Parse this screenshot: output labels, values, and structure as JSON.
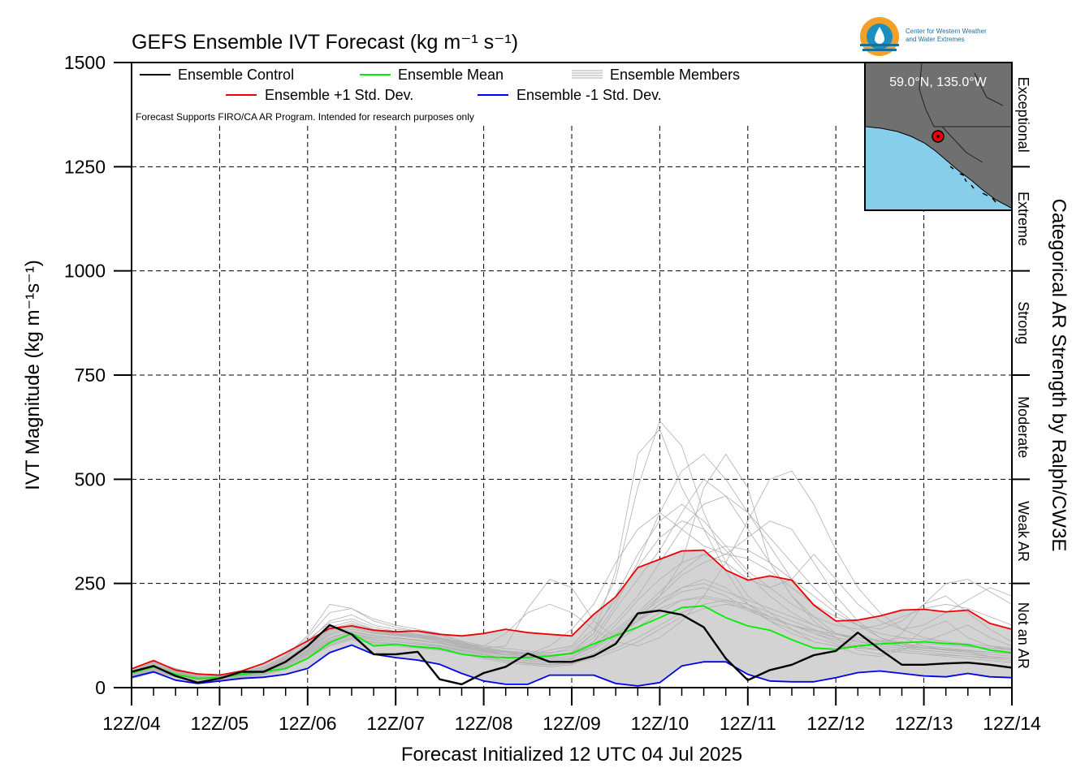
{
  "chart_data": {
    "type": "line",
    "title": "GEFS Ensemble IVT Forecast (kg m⁻¹ s⁻¹)",
    "xlabel": "Forecast Initialized 12 UTC 04 Jul 2025",
    "ylabel": "IVT Magnitude (kg m⁻¹s⁻¹)",
    "right_axis_label": "Categorical AR Strength by Ralph/CW3E",
    "note": "Forecast Supports FIRO/CA AR Program. Intended for research purposes only",
    "ylim": [
      0,
      1500
    ],
    "yticks": [
      0,
      250,
      500,
      750,
      1000,
      1250,
      1500
    ],
    "xlim": [
      0,
      240
    ],
    "x_unit": "forecast hour",
    "x_tick_hours": [
      0,
      24,
      48,
      72,
      96,
      120,
      144,
      168,
      192,
      216,
      240
    ],
    "x_tick_labels": [
      "12Z/04",
      "12Z/05",
      "12Z/06",
      "12Z/07",
      "12Z/08",
      "12Z/09",
      "12Z/10",
      "12Z/11",
      "12Z/12",
      "12Z/13",
      "12Z/14"
    ],
    "grid": true,
    "legend": [
      {
        "name": "Ensemble Control",
        "color": "#000000"
      },
      {
        "name": "Ensemble Mean",
        "color": "#00ee00"
      },
      {
        "name": "Ensemble Members",
        "color": "#aaaaaa"
      },
      {
        "name": "Ensemble +1 Std. Dev.",
        "color": "#ee0000"
      },
      {
        "name": "Ensemble -1 Std. Dev.",
        "color": "#0000ee"
      }
    ],
    "legend_placement": "top-left",
    "categories": [
      {
        "label": "Not an AR",
        "range": [
          0,
          250
        ]
      },
      {
        "label": "Weak AR",
        "range": [
          250,
          500
        ]
      },
      {
        "label": "Moderate",
        "range": [
          500,
          750
        ]
      },
      {
        "label": "Strong",
        "range": [
          750,
          1000
        ]
      },
      {
        "label": "Extreme",
        "range": [
          1000,
          1250
        ]
      },
      {
        "label": "Exceptional",
        "range": [
          1250,
          1500
        ]
      }
    ],
    "location_label": "59.0°N, 135.0°W",
    "logo_text": [
      "Center for Western Weather",
      "and Water Extremes"
    ],
    "series": [
      {
        "name": "Ensemble Control",
        "color": "#000000",
        "x": [
          0,
          6,
          12,
          18,
          24,
          30,
          36,
          42,
          48,
          54,
          60,
          66,
          72,
          78,
          84,
          90,
          96,
          102,
          108,
          114,
          120,
          126,
          132,
          138,
          144,
          150,
          156,
          162,
          168,
          174,
          180,
          186,
          192,
          198,
          204,
          210,
          216,
          222,
          228,
          234,
          240
        ],
        "y": [
          38,
          52,
          28,
          12,
          22,
          38,
          38,
          62,
          100,
          150,
          128,
          80,
          80,
          86,
          20,
          8,
          35,
          50,
          82,
          62,
          62,
          76,
          105,
          178,
          185,
          175,
          145,
          70,
          18,
          42,
          55,
          78,
          88,
          132,
          92,
          55,
          55,
          58,
          60,
          55,
          48
        ]
      },
      {
        "name": "Ensemble Mean",
        "color": "#00ee00",
        "x": [
          0,
          6,
          12,
          18,
          24,
          30,
          36,
          42,
          48,
          54,
          60,
          66,
          72,
          78,
          84,
          90,
          96,
          102,
          108,
          114,
          120,
          126,
          132,
          138,
          144,
          150,
          156,
          162,
          168,
          174,
          180,
          186,
          192,
          198,
          204,
          210,
          216,
          222,
          228,
          234,
          240
        ],
        "y": [
          35,
          50,
          32,
          22,
          24,
          32,
          38,
          46,
          70,
          108,
          130,
          100,
          104,
          98,
          94,
          80,
          74,
          72,
          72,
          76,
          82,
          105,
          125,
          145,
          168,
          192,
          196,
          168,
          148,
          138,
          115,
          95,
          92,
          100,
          105,
          108,
          110,
          106,
          103,
          90,
          84
        ]
      },
      {
        "name": "Ensemble +1 Std. Dev.",
        "color": "#ee0000",
        "x": [
          0,
          6,
          12,
          18,
          24,
          30,
          36,
          42,
          48,
          54,
          60,
          66,
          72,
          78,
          84,
          90,
          96,
          102,
          108,
          114,
          120,
          126,
          132,
          138,
          144,
          150,
          156,
          162,
          168,
          174,
          180,
          186,
          192,
          198,
          204,
          210,
          216,
          222,
          228,
          234,
          240
        ],
        "y": [
          45,
          65,
          42,
          33,
          30,
          40,
          58,
          84,
          112,
          142,
          148,
          138,
          134,
          136,
          128,
          124,
          130,
          140,
          132,
          128,
          124,
          176,
          218,
          288,
          308,
          328,
          330,
          282,
          258,
          268,
          258,
          198,
          160,
          162,
          172,
          186,
          188,
          182,
          186,
          154,
          140
        ]
      },
      {
        "name": "Ensemble -1 Std. Dev.",
        "color": "#0000ee",
        "x": [
          0,
          6,
          12,
          18,
          24,
          30,
          36,
          42,
          48,
          54,
          60,
          66,
          72,
          78,
          84,
          90,
          96,
          102,
          108,
          114,
          120,
          126,
          132,
          138,
          144,
          150,
          156,
          162,
          168,
          174,
          180,
          186,
          192,
          198,
          204,
          210,
          216,
          222,
          228,
          234,
          240
        ],
        "y": [
          25,
          38,
          18,
          10,
          16,
          22,
          25,
          32,
          46,
          84,
          102,
          80,
          72,
          66,
          56,
          34,
          16,
          8,
          8,
          30,
          30,
          30,
          10,
          4,
          12,
          52,
          62,
          62,
          32,
          16,
          14,
          14,
          24,
          36,
          40,
          34,
          28,
          26,
          34,
          26,
          24
        ]
      }
    ],
    "members": [
      [
        30,
        45,
        35,
        25,
        28,
        35,
        45,
        70,
        95,
        130,
        150,
        135,
        130,
        120,
        110,
        95,
        85,
        80,
        75,
        70,
        85,
        130,
        280,
        560,
        620,
        480,
        380,
        280,
        200,
        160,
        130,
        110,
        100,
        95,
        110,
        120,
        100,
        90,
        85,
        75,
        70
      ],
      [
        35,
        55,
        40,
        28,
        25,
        30,
        40,
        60,
        110,
        160,
        175,
        150,
        140,
        135,
        120,
        110,
        95,
        100,
        190,
        260,
        240,
        160,
        120,
        160,
        220,
        300,
        480,
        560,
        480,
        300,
        220,
        160,
        120,
        90,
        80,
        95,
        140,
        160,
        120,
        100,
        90
      ],
      [
        40,
        60,
        45,
        30,
        30,
        38,
        50,
        75,
        120,
        180,
        190,
        165,
        150,
        140,
        130,
        110,
        90,
        80,
        80,
        90,
        100,
        160,
        260,
        480,
        640,
        580,
        420,
        300,
        220,
        180,
        140,
        110,
        100,
        80,
        75,
        90,
        110,
        130,
        150,
        120,
        100
      ],
      [
        25,
        40,
        30,
        20,
        22,
        28,
        35,
        50,
        80,
        110,
        125,
        115,
        110,
        105,
        100,
        90,
        80,
        70,
        65,
        60,
        70,
        110,
        190,
        260,
        330,
        420,
        500,
        460,
        380,
        300,
        220,
        170,
        130,
        110,
        100,
        130,
        200,
        220,
        180,
        140,
        110
      ],
      [
        32,
        50,
        38,
        26,
        26,
        32,
        42,
        62,
        90,
        125,
        140,
        130,
        125,
        120,
        115,
        100,
        90,
        85,
        80,
        100,
        140,
        200,
        300,
        380,
        420,
        380,
        340,
        320,
        360,
        400,
        380,
        300,
        220,
        160,
        120,
        100,
        90,
        85,
        80,
        75,
        70
      ],
      [
        28,
        44,
        34,
        22,
        24,
        30,
        38,
        55,
        85,
        115,
        130,
        120,
        118,
        112,
        106,
        95,
        85,
        78,
        70,
        66,
        72,
        100,
        150,
        210,
        260,
        300,
        320,
        300,
        260,
        240,
        260,
        320,
        260,
        200,
        160,
        140,
        150,
        180,
        210,
        240,
        220
      ],
      [
        36,
        52,
        40,
        27,
        27,
        34,
        44,
        68,
        105,
        145,
        160,
        140,
        130,
        125,
        118,
        105,
        100,
        130,
        180,
        200,
        180,
        140,
        110,
        100,
        120,
        160,
        220,
        300,
        400,
        500,
        520,
        440,
        330,
        240,
        180,
        140,
        120,
        110,
        100,
        95,
        90
      ],
      [
        22,
        36,
        26,
        18,
        20,
        24,
        30,
        44,
        70,
        100,
        115,
        105,
        100,
        95,
        90,
        80,
        70,
        60,
        55,
        50,
        55,
        80,
        120,
        160,
        200,
        240,
        260,
        240,
        200,
        170,
        150,
        130,
        110,
        100,
        90,
        85,
        80,
        75,
        70,
        65,
        60
      ],
      [
        38,
        58,
        44,
        30,
        30,
        36,
        48,
        72,
        115,
        155,
        165,
        145,
        135,
        128,
        120,
        108,
        96,
        88,
        82,
        78,
        84,
        120,
        200,
        300,
        420,
        520,
        560,
        500,
        420,
        340,
        260,
        200,
        160,
        130,
        110,
        100,
        95,
        90,
        85,
        80,
        75
      ],
      [
        30,
        46,
        34,
        24,
        24,
        30,
        40,
        58,
        88,
        120,
        135,
        125,
        120,
        115,
        108,
        98,
        88,
        80,
        74,
        70,
        76,
        95,
        130,
        170,
        210,
        240,
        250,
        230,
        210,
        190,
        170,
        150,
        130,
        120,
        110,
        105,
        100,
        95,
        90,
        85,
        80
      ],
      [
        34,
        50,
        38,
        26,
        26,
        32,
        42,
        60,
        95,
        135,
        150,
        135,
        128,
        122,
        115,
        102,
        92,
        86,
        80,
        76,
        82,
        105,
        140,
        180,
        230,
        280,
        320,
        340,
        330,
        300,
        260,
        220,
        180,
        150,
        130,
        120,
        115,
        110,
        105,
        100,
        95
      ],
      [
        26,
        40,
        30,
        20,
        22,
        26,
        34,
        48,
        75,
        105,
        120,
        110,
        106,
        100,
        95,
        85,
        75,
        66,
        60,
        56,
        60,
        75,
        95,
        120,
        150,
        180,
        200,
        210,
        200,
        180,
        160,
        140,
        120,
        110,
        100,
        95,
        90,
        85,
        80,
        75,
        70
      ],
      [
        40,
        62,
        46,
        32,
        32,
        38,
        50,
        76,
        125,
        200,
        190,
        160,
        145,
        135,
        125,
        112,
        100,
        94,
        88,
        84,
        90,
        130,
        220,
        320,
        400,
        440,
        400,
        340,
        280,
        240,
        200,
        170,
        150,
        140,
        150,
        170,
        190,
        200,
        190,
        170,
        150
      ],
      [
        24,
        38,
        28,
        18,
        20,
        25,
        32,
        46,
        72,
        102,
        118,
        108,
        104,
        98,
        92,
        82,
        72,
        64,
        58,
        54,
        58,
        70,
        88,
        110,
        140,
        170,
        190,
        200,
        190,
        170,
        150,
        130,
        115,
        105,
        95,
        90,
        85,
        80,
        75,
        70,
        65
      ],
      [
        33,
        48,
        36,
        25,
        25,
        31,
        41,
        59,
        92,
        128,
        145,
        132,
        126,
        120,
        112,
        100,
        90,
        84,
        78,
        74,
        80,
        100,
        135,
        175,
        220,
        270,
        300,
        320,
        310,
        280,
        240,
        200,
        170,
        150,
        140,
        160,
        200,
        250,
        260,
        230,
        200
      ],
      [
        29,
        43,
        33,
        23,
        23,
        29,
        37,
        54,
        82,
        112,
        128,
        118,
        114,
        108,
        102,
        92,
        82,
        74,
        68,
        64,
        68,
        90,
        125,
        165,
        200,
        230,
        240,
        220,
        190,
        160,
        140,
        120,
        105,
        95,
        90,
        85,
        80,
        78,
        75,
        72,
        70
      ],
      [
        37,
        54,
        42,
        28,
        28,
        35,
        45,
        66,
        100,
        140,
        155,
        140,
        133,
        127,
        119,
        106,
        95,
        88,
        82,
        78,
        84,
        110,
        160,
        220,
        300,
        380,
        440,
        460,
        420,
        360,
        300,
        240,
        190,
        150,
        120,
        105,
        95,
        90,
        85,
        80,
        75
      ],
      [
        27,
        42,
        32,
        22,
        22,
        28,
        36,
        52,
        78,
        108,
        124,
        114,
        110,
        104,
        98,
        88,
        78,
        70,
        64,
        60,
        64,
        82,
        110,
        145,
        180,
        210,
        220,
        210,
        190,
        170,
        150,
        135,
        120,
        110,
        105,
        100,
        95,
        92,
        88,
        85,
        82
      ],
      [
        35,
        52,
        40,
        27,
        28,
        34,
        44,
        64,
        98,
        138,
        152,
        138,
        130,
        124,
        116,
        104,
        94,
        88,
        84,
        82,
        96,
        140,
        210,
        290,
        360,
        400,
        380,
        330,
        270,
        220,
        180,
        150,
        130,
        115,
        105,
        100,
        96,
        92,
        88,
        85,
        82
      ],
      [
        31,
        47,
        35,
        24,
        24,
        30,
        40,
        57,
        86,
        118,
        134,
        124,
        120,
        114,
        108,
        96,
        86,
        80,
        76,
        74,
        80,
        98,
        128,
        160,
        190,
        210,
        215,
        205,
        185,
        165,
        150,
        138,
        128,
        120,
        114,
        110,
        106,
        102,
        98,
        95,
        92
      ]
    ]
  }
}
